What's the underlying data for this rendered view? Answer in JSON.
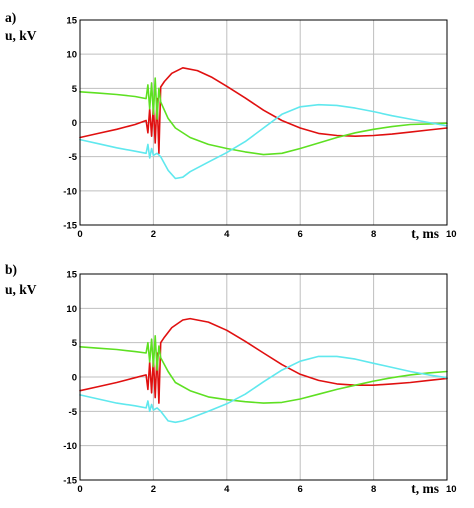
{
  "chart_data": [
    {
      "type": "line",
      "panel_label": "a)",
      "ylabel": "u, kV",
      "xlabel": "t, ms",
      "xlim": [
        0,
        10
      ],
      "ylim": [
        -15,
        15
      ],
      "x_ticks": [
        0,
        2,
        4,
        6,
        8,
        10
      ],
      "y_ticks": [
        15,
        10,
        5,
        0,
        -5,
        -10,
        -15
      ],
      "grid": true,
      "series": [
        {
          "color": "#e01010",
          "points": [
            [
              0,
              -2.2
            ],
            [
              0.5,
              -1.6
            ],
            [
              1,
              -1.0
            ],
            [
              1.5,
              -0.3
            ],
            [
              1.8,
              0.3
            ],
            [
              1.85,
              -1.5
            ],
            [
              1.9,
              2.0
            ],
            [
              1.95,
              -2.0
            ],
            [
              2.0,
              2.5
            ],
            [
              2.05,
              -3.0
            ],
            [
              2.1,
              3.5
            ],
            [
              2.15,
              -4.5
            ],
            [
              2.2,
              5.2
            ],
            [
              2.3,
              6.0
            ],
            [
              2.5,
              7.2
            ],
            [
              2.8,
              8.0
            ],
            [
              3.2,
              7.6
            ],
            [
              3.6,
              6.6
            ],
            [
              4.0,
              5.3
            ],
            [
              4.5,
              3.6
            ],
            [
              5.0,
              1.8
            ],
            [
              5.5,
              0.3
            ],
            [
              6.0,
              -0.8
            ],
            [
              6.5,
              -1.6
            ],
            [
              7.0,
              -1.9
            ],
            [
              7.5,
              -2.0
            ],
            [
              8.0,
              -1.9
            ],
            [
              8.5,
              -1.7
            ],
            [
              9.0,
              -1.4
            ],
            [
              9.5,
              -1.1
            ],
            [
              10.0,
              -0.8
            ]
          ]
        },
        {
          "color": "#5ee022",
          "points": [
            [
              0,
              4.5
            ],
            [
              0.5,
              4.3
            ],
            [
              1.0,
              4.1
            ],
            [
              1.5,
              3.8
            ],
            [
              1.8,
              3.5
            ],
            [
              1.85,
              5.5
            ],
            [
              1.9,
              2.0
            ],
            [
              1.95,
              5.8
            ],
            [
              2.0,
              1.2
            ],
            [
              2.05,
              6.5
            ],
            [
              2.1,
              0.5
            ],
            [
              2.15,
              5.0
            ],
            [
              2.2,
              3.0
            ],
            [
              2.4,
              0.6
            ],
            [
              2.6,
              -0.8
            ],
            [
              3.0,
              -2.2
            ],
            [
              3.5,
              -3.2
            ],
            [
              4.0,
              -3.8
            ],
            [
              4.5,
              -4.3
            ],
            [
              5.0,
              -4.7
            ],
            [
              5.5,
              -4.5
            ],
            [
              6.0,
              -3.8
            ],
            [
              6.5,
              -3.0
            ],
            [
              7.0,
              -2.2
            ],
            [
              7.5,
              -1.5
            ],
            [
              8.0,
              -1.0
            ],
            [
              8.5,
              -0.6
            ],
            [
              9.0,
              -0.3
            ],
            [
              9.5,
              -0.2
            ],
            [
              10.0,
              -0.1
            ]
          ]
        },
        {
          "color": "#60e8ee",
          "points": [
            [
              0,
              -2.5
            ],
            [
              0.5,
              -3.1
            ],
            [
              1.0,
              -3.7
            ],
            [
              1.5,
              -4.2
            ],
            [
              1.8,
              -4.5
            ],
            [
              1.85,
              -3.2
            ],
            [
              1.9,
              -5.2
            ],
            [
              1.95,
              -3.8
            ],
            [
              2.0,
              -4.8
            ],
            [
              2.1,
              -4.5
            ],
            [
              2.2,
              -5.0
            ],
            [
              2.4,
              -7.0
            ],
            [
              2.6,
              -8.2
            ],
            [
              2.8,
              -8.0
            ],
            [
              3.0,
              -7.2
            ],
            [
              3.5,
              -5.8
            ],
            [
              4.0,
              -4.4
            ],
            [
              4.5,
              -2.8
            ],
            [
              5.0,
              -0.8
            ],
            [
              5.5,
              1.2
            ],
            [
              6.0,
              2.3
            ],
            [
              6.5,
              2.6
            ],
            [
              7.0,
              2.5
            ],
            [
              7.5,
              2.1
            ],
            [
              8.0,
              1.6
            ],
            [
              8.5,
              1.0
            ],
            [
              9.0,
              0.5
            ],
            [
              9.5,
              0.0
            ],
            [
              10.0,
              -0.5
            ]
          ]
        }
      ]
    },
    {
      "type": "line",
      "panel_label": "b)",
      "ylabel": "u, kV",
      "xlabel": "t, ms",
      "xlim": [
        0,
        10
      ],
      "ylim": [
        -15,
        15
      ],
      "x_ticks": [
        0,
        2,
        4,
        6,
        8,
        10
      ],
      "y_ticks": [
        15,
        10,
        5,
        0,
        -5,
        -10,
        -15
      ],
      "grid": true,
      "series": [
        {
          "color": "#e01010",
          "points": [
            [
              0,
              -2.0
            ],
            [
              0.5,
              -1.4
            ],
            [
              1,
              -0.8
            ],
            [
              1.5,
              -0.1
            ],
            [
              1.8,
              0.3
            ],
            [
              1.85,
              -1.8
            ],
            [
              1.9,
              2.2
            ],
            [
              1.95,
              -2.3
            ],
            [
              2.0,
              2.8
            ],
            [
              2.05,
              -3.0
            ],
            [
              2.1,
              3.5
            ],
            [
              2.15,
              -3.8
            ],
            [
              2.2,
              5.0
            ],
            [
              2.3,
              5.8
            ],
            [
              2.5,
              7.2
            ],
            [
              2.8,
              8.3
            ],
            [
              3.0,
              8.5
            ],
            [
              3.5,
              8.0
            ],
            [
              4.0,
              6.8
            ],
            [
              4.5,
              5.2
            ],
            [
              5.0,
              3.5
            ],
            [
              5.5,
              1.8
            ],
            [
              6.0,
              0.4
            ],
            [
              6.5,
              -0.5
            ],
            [
              7.0,
              -1.0
            ],
            [
              7.5,
              -1.2
            ],
            [
              8.0,
              -1.2
            ],
            [
              8.5,
              -1.0
            ],
            [
              9.0,
              -0.8
            ],
            [
              9.5,
              -0.5
            ],
            [
              10.0,
              -0.2
            ]
          ]
        },
        {
          "color": "#5ee022",
          "points": [
            [
              0,
              4.4
            ],
            [
              0.5,
              4.2
            ],
            [
              1.0,
              4.0
            ],
            [
              1.5,
              3.7
            ],
            [
              1.8,
              3.5
            ],
            [
              1.85,
              5.0
            ],
            [
              1.9,
              2.2
            ],
            [
              1.95,
              5.5
            ],
            [
              2.0,
              1.5
            ],
            [
              2.05,
              6.0
            ],
            [
              2.1,
              1.0
            ],
            [
              2.15,
              4.5
            ],
            [
              2.2,
              2.8
            ],
            [
              2.4,
              0.8
            ],
            [
              2.6,
              -0.8
            ],
            [
              3.0,
              -2.0
            ],
            [
              3.5,
              -2.9
            ],
            [
              4.0,
              -3.3
            ],
            [
              4.5,
              -3.6
            ],
            [
              5.0,
              -3.8
            ],
            [
              5.5,
              -3.7
            ],
            [
              6.0,
              -3.2
            ],
            [
              6.5,
              -2.5
            ],
            [
              7.0,
              -1.8
            ],
            [
              7.5,
              -1.2
            ],
            [
              8.0,
              -0.6
            ],
            [
              8.5,
              -0.1
            ],
            [
              9.0,
              0.3
            ],
            [
              9.5,
              0.6
            ],
            [
              10.0,
              0.8
            ]
          ]
        },
        {
          "color": "#60e8ee",
          "points": [
            [
              0,
              -2.6
            ],
            [
              0.5,
              -3.2
            ],
            [
              1.0,
              -3.8
            ],
            [
              1.5,
              -4.2
            ],
            [
              1.8,
              -4.5
            ],
            [
              1.85,
              -3.5
            ],
            [
              1.9,
              -5.0
            ],
            [
              1.95,
              -4.0
            ],
            [
              2.0,
              -4.8
            ],
            [
              2.1,
              -4.5
            ],
            [
              2.2,
              -5.0
            ],
            [
              2.4,
              -6.4
            ],
            [
              2.6,
              -6.6
            ],
            [
              2.8,
              -6.4
            ],
            [
              3.0,
              -6.0
            ],
            [
              3.5,
              -5.0
            ],
            [
              4.0,
              -3.9
            ],
            [
              4.5,
              -2.5
            ],
            [
              5.0,
              -0.7
            ],
            [
              5.5,
              1.0
            ],
            [
              6.0,
              2.3
            ],
            [
              6.5,
              3.0
            ],
            [
              7.0,
              3.0
            ],
            [
              7.5,
              2.6
            ],
            [
              8.0,
              2.0
            ],
            [
              8.5,
              1.4
            ],
            [
              9.0,
              0.8
            ],
            [
              9.5,
              0.3
            ],
            [
              10.0,
              -0.1
            ]
          ]
        }
      ]
    }
  ]
}
